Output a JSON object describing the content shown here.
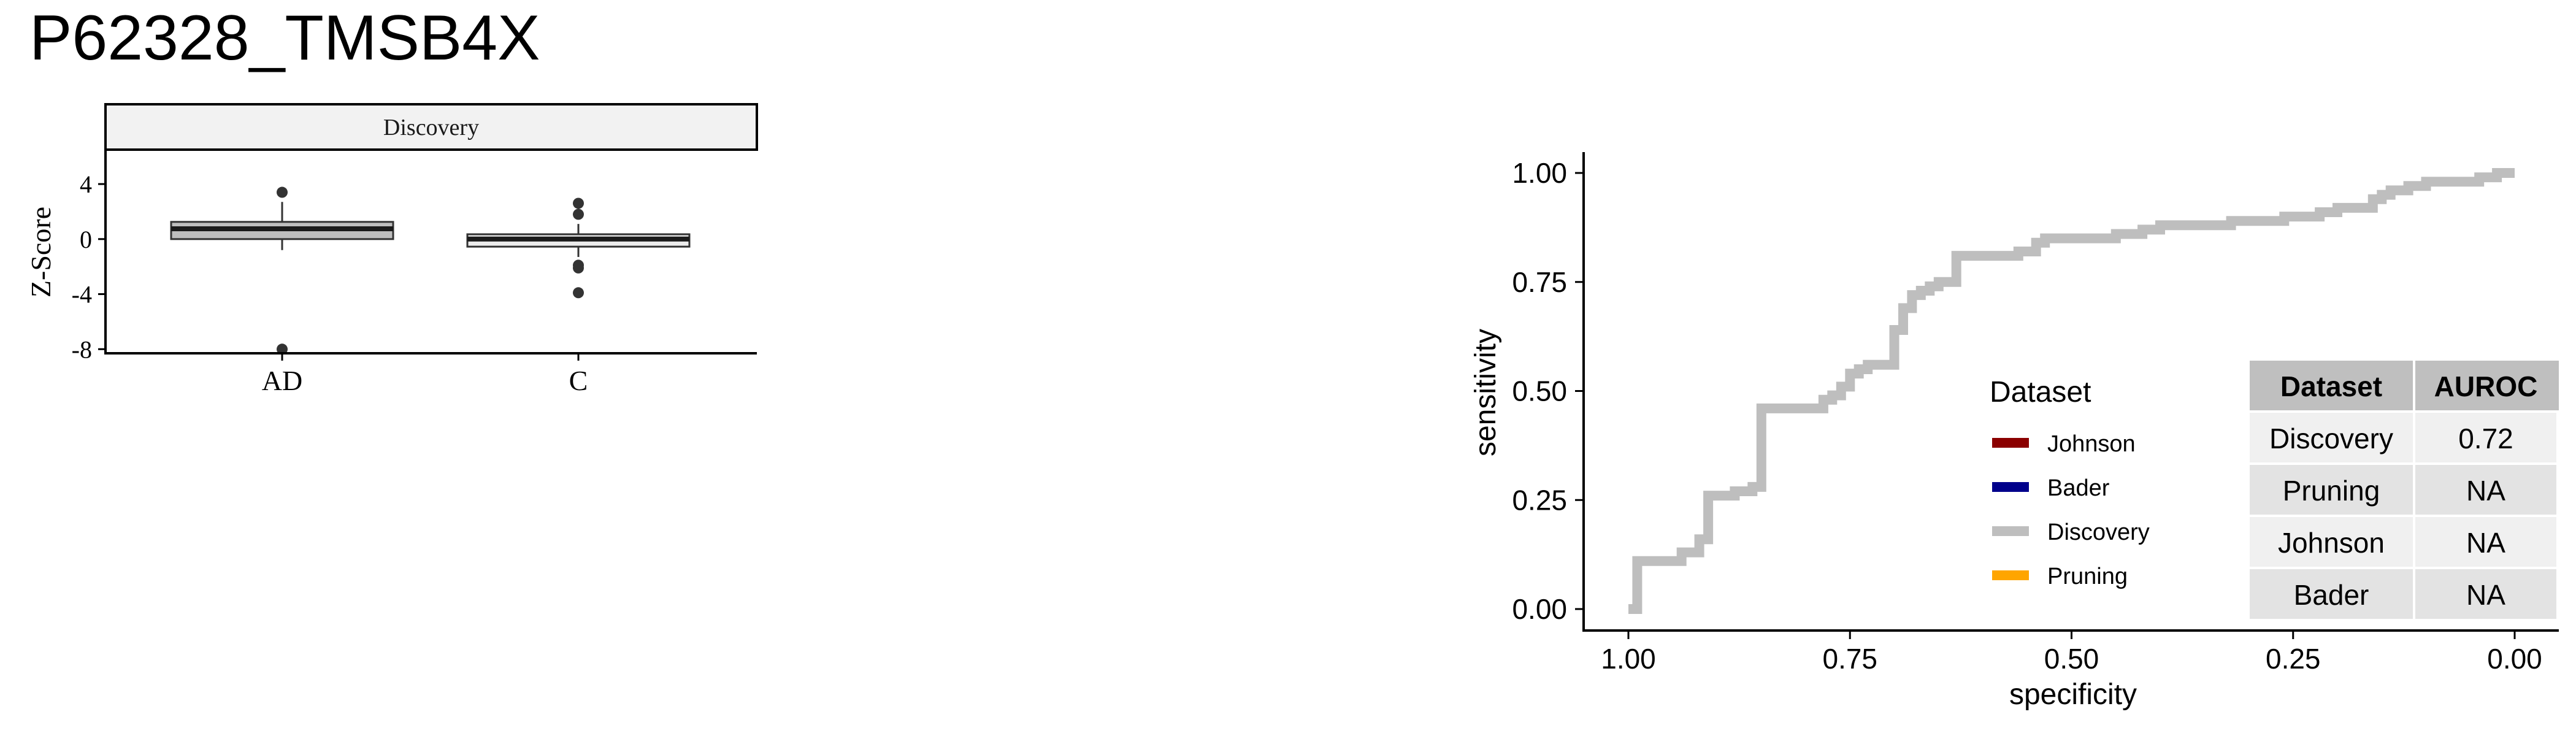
{
  "title": "P62328_TMSB4X",
  "chart_data": [
    {
      "type": "box",
      "facet_label": "Discovery",
      "ylabel": "Z-Score",
      "categories": [
        "AD",
        "C"
      ],
      "ylim": [
        -8.3,
        6.5
      ],
      "yticks": [
        4,
        0,
        -4,
        -8
      ],
      "ytick_labels": [
        "4",
        "0",
        "-4",
        "-8"
      ],
      "boxes": [
        {
          "category": "AD",
          "q1": 0.0,
          "median": 0.75,
          "q3": 1.25,
          "whisker_low": -0.8,
          "whisker_high": 2.7,
          "outliers": [
            3.4,
            -8.0
          ],
          "fill": "#bebebe"
        },
        {
          "category": "C",
          "q1": -0.55,
          "median": 0.0,
          "q3": 0.35,
          "whisker_low": -1.3,
          "whisker_high": 1.1,
          "outliers": [
            2.6,
            1.8,
            -1.9,
            -2.1,
            -3.9
          ],
          "fill": "#ececec"
        }
      ]
    },
    {
      "type": "line",
      "xlabel": "specificity",
      "ylabel": "sensitivity",
      "x_reversed": true,
      "xlim": [
        1.0,
        0.0
      ],
      "ylim": [
        0.0,
        1.0
      ],
      "xticks": [
        1.0,
        0.75,
        0.5,
        0.25,
        0.0
      ],
      "xtick_labels": [
        "1.00",
        "0.75",
        "0.50",
        "0.25",
        "0.00"
      ],
      "yticks": [
        0.0,
        0.25,
        0.5,
        0.75,
        1.0
      ],
      "ytick_labels": [
        "0.00",
        "0.25",
        "0.50",
        "0.75",
        "1.00"
      ],
      "legend": {
        "title": "Dataset",
        "position": "inside-bottom",
        "entries": [
          {
            "name": "Johnson",
            "color": "#8b0000"
          },
          {
            "name": "Bader",
            "color": "#00008b"
          },
          {
            "name": "Discovery",
            "color": "#bebebe"
          },
          {
            "name": "Pruning",
            "color": "#ffa500"
          }
        ]
      },
      "series": [
        {
          "name": "Discovery",
          "color": "#bebebe",
          "points": [
            [
              1.0,
              0.0
            ],
            [
              0.99,
              0.0
            ],
            [
              0.99,
              0.11
            ],
            [
              0.94,
              0.11
            ],
            [
              0.94,
              0.13
            ],
            [
              0.92,
              0.13
            ],
            [
              0.92,
              0.16
            ],
            [
              0.91,
              0.16
            ],
            [
              0.91,
              0.26
            ],
            [
              0.88,
              0.26
            ],
            [
              0.88,
              0.27
            ],
            [
              0.86,
              0.27
            ],
            [
              0.86,
              0.28
            ],
            [
              0.85,
              0.28
            ],
            [
              0.85,
              0.46
            ],
            [
              0.78,
              0.46
            ],
            [
              0.78,
              0.48
            ],
            [
              0.77,
              0.48
            ],
            [
              0.77,
              0.49
            ],
            [
              0.76,
              0.49
            ],
            [
              0.76,
              0.51
            ],
            [
              0.75,
              0.51
            ],
            [
              0.75,
              0.54
            ],
            [
              0.74,
              0.54
            ],
            [
              0.74,
              0.55
            ],
            [
              0.73,
              0.55
            ],
            [
              0.73,
              0.56
            ],
            [
              0.7,
              0.56
            ],
            [
              0.7,
              0.64
            ],
            [
              0.69,
              0.64
            ],
            [
              0.69,
              0.69
            ],
            [
              0.68,
              0.69
            ],
            [
              0.68,
              0.72
            ],
            [
              0.67,
              0.72
            ],
            [
              0.67,
              0.73
            ],
            [
              0.66,
              0.73
            ],
            [
              0.66,
              0.74
            ],
            [
              0.65,
              0.74
            ],
            [
              0.65,
              0.75
            ],
            [
              0.63,
              0.75
            ],
            [
              0.63,
              0.81
            ],
            [
              0.56,
              0.81
            ],
            [
              0.56,
              0.82
            ],
            [
              0.54,
              0.82
            ],
            [
              0.54,
              0.84
            ],
            [
              0.53,
              0.84
            ],
            [
              0.53,
              0.85
            ],
            [
              0.45,
              0.85
            ],
            [
              0.45,
              0.86
            ],
            [
              0.42,
              0.86
            ],
            [
              0.42,
              0.87
            ],
            [
              0.4,
              0.87
            ],
            [
              0.4,
              0.88
            ],
            [
              0.32,
              0.88
            ],
            [
              0.32,
              0.89
            ],
            [
              0.26,
              0.89
            ],
            [
              0.26,
              0.9
            ],
            [
              0.22,
              0.9
            ],
            [
              0.22,
              0.91
            ],
            [
              0.2,
              0.91
            ],
            [
              0.2,
              0.92
            ],
            [
              0.16,
              0.92
            ],
            [
              0.16,
              0.94
            ],
            [
              0.15,
              0.94
            ],
            [
              0.15,
              0.95
            ],
            [
              0.14,
              0.95
            ],
            [
              0.14,
              0.96
            ],
            [
              0.12,
              0.96
            ],
            [
              0.12,
              0.97
            ],
            [
              0.1,
              0.97
            ],
            [
              0.1,
              0.98
            ],
            [
              0.04,
              0.98
            ],
            [
              0.04,
              0.99
            ],
            [
              0.02,
              0.99
            ],
            [
              0.02,
              1.0
            ],
            [
              0.0,
              1.0
            ]
          ]
        }
      ],
      "table": {
        "headers": [
          "Dataset",
          "AUROC"
        ],
        "rows": [
          [
            "Discovery",
            "0.72"
          ],
          [
            "Pruning",
            "NA"
          ],
          [
            "Johnson",
            "NA"
          ],
          [
            "Bader",
            "NA"
          ]
        ]
      }
    }
  ]
}
